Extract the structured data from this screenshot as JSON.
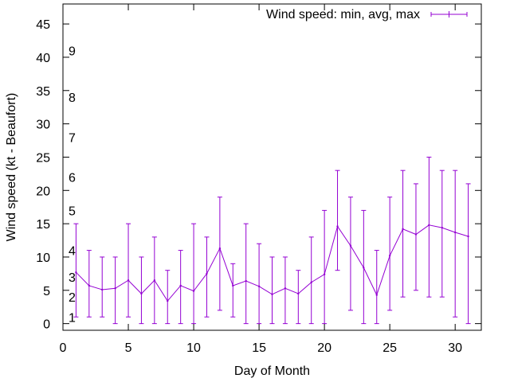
{
  "chart_data": {
    "type": "line",
    "title": "",
    "xlabel": "Day of Month",
    "ylabel": "Wind speed (kt - Beaufort)",
    "xlim": [
      0,
      32
    ],
    "ylim": [
      -1,
      48
    ],
    "x_ticks": [
      0,
      5,
      10,
      15,
      20,
      25,
      30
    ],
    "y_ticks": [
      0,
      5,
      10,
      15,
      20,
      25,
      30,
      35,
      40,
      45
    ],
    "grid": false,
    "legend_position": "top-right",
    "colors": {
      "series": "#9400d3",
      "axis": "#000000"
    },
    "beaufort_scale": [
      {
        "label": "1",
        "value": 1
      },
      {
        "label": "2",
        "value": 4
      },
      {
        "label": "3",
        "value": 7
      },
      {
        "label": "4",
        "value": 11
      },
      {
        "label": "5",
        "value": 17
      },
      {
        "label": "6",
        "value": 22
      },
      {
        "label": "7",
        "value": 28
      },
      {
        "label": "8",
        "value": 34
      },
      {
        "label": "9",
        "value": 41
      }
    ],
    "series": [
      {
        "name": "Wind speed: min, avg, max",
        "x": [
          1,
          2,
          3,
          4,
          5,
          6,
          7,
          8,
          9,
          10,
          11,
          12,
          13,
          14,
          15,
          16,
          17,
          18,
          19,
          20,
          21,
          22,
          23,
          24,
          25,
          26,
          27,
          28,
          29,
          30,
          31
        ],
        "min": [
          1,
          1,
          1,
          0,
          1,
          0,
          0,
          0,
          0,
          0,
          1,
          2,
          1,
          0,
          0,
          0,
          0,
          0,
          0,
          0,
          8,
          2,
          0,
          0,
          2,
          4,
          5,
          4,
          4,
          1,
          0
        ],
        "avg": [
          7.7,
          5.7,
          5.1,
          5.3,
          6.5,
          4.5,
          6.5,
          3.4,
          5.7,
          4.9,
          7.5,
          11.3,
          5.7,
          6.4,
          5.6,
          4.4,
          5.3,
          4.5,
          6.2,
          7.4,
          14.6,
          11.7,
          8.4,
          4.3,
          10.2,
          14.2,
          13.4,
          14.8,
          14.4,
          13.7,
          13.1
        ],
        "max": [
          15,
          11,
          10,
          10,
          15,
          10,
          13,
          8,
          11,
          15,
          13,
          19,
          9,
          15,
          12,
          10,
          10,
          8,
          13,
          17,
          23,
          19,
          17,
          11,
          19,
          23,
          21,
          25,
          23,
          23,
          21
        ]
      }
    ]
  }
}
